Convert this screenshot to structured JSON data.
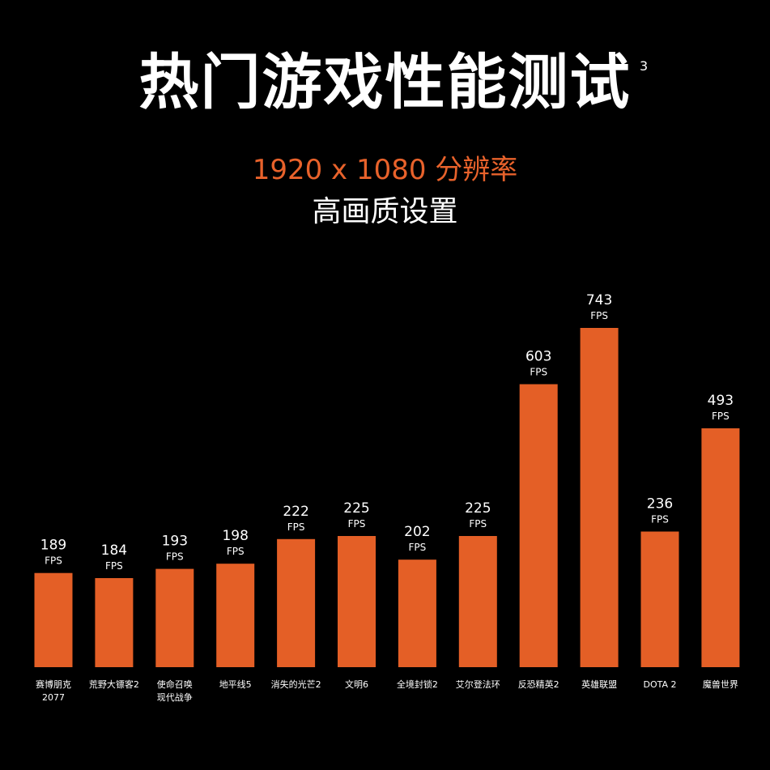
{
  "header": {
    "title": "热门游戏性能测试",
    "title_note": "3",
    "subtitle": "1920 x 1080 分辨率",
    "subtitle2": "高画质设置"
  },
  "colors": {
    "background": "#000000",
    "bar": "#e45f26",
    "subtitle": "#e8622b",
    "text": "#ffffff"
  },
  "chart_data": {
    "type": "bar",
    "unit": "FPS",
    "categories": [
      [
        "赛博朋克",
        "2077"
      ],
      [
        "荒野大镖客2"
      ],
      [
        "使命召唤",
        "现代战争"
      ],
      [
        "地平线5"
      ],
      [
        "消失的光芒2"
      ],
      [
        "文明6"
      ],
      [
        "全境封锁2"
      ],
      [
        "艾尔登法环"
      ],
      [
        "反恐精英2"
      ],
      [
        "英雄联盟"
      ],
      [
        "DOTA 2"
      ],
      [
        "魔兽世界"
      ]
    ],
    "values": [
      189,
      184,
      193,
      198,
      222,
      225,
      202,
      225,
      603,
      743,
      236,
      493
    ],
    "grid": false,
    "legend": "none"
  }
}
